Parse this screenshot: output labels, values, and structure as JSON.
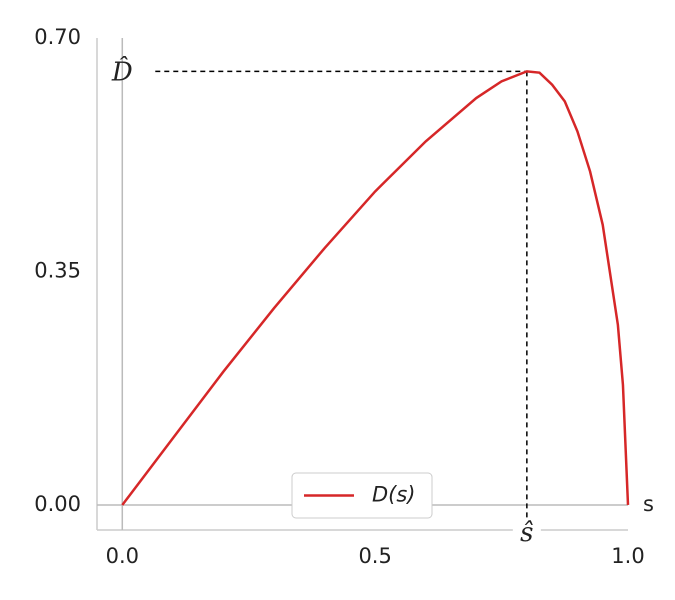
{
  "chart_data": {
    "type": "line",
    "x": [
      0,
      0.1,
      0.2,
      0.3,
      0.4,
      0.5,
      0.6,
      0.7,
      0.75,
      0.8,
      0.825,
      0.85,
      0.875,
      0.9,
      0.925,
      0.95,
      0.98,
      0.99,
      1.0
    ],
    "series": [
      {
        "name": "D(s)",
        "color": "#d62728",
        "values": [
          0,
          0.1,
          0.2,
          0.295,
          0.385,
          0.47,
          0.545,
          0.61,
          0.635,
          0.65,
          0.648,
          0.63,
          0.605,
          0.56,
          0.5,
          0.42,
          0.27,
          0.18,
          0
        ]
      }
    ],
    "xlabel": "s",
    "xlim": [
      -0.05,
      1.0
    ],
    "ylim": [
      -0.0375,
      0.7
    ],
    "xticks": [
      {
        "value": 0,
        "label": "0.0"
      },
      {
        "value": 0.5,
        "label": "0.5"
      },
      {
        "value": 1.0,
        "label": "1.0"
      }
    ],
    "yticks": [
      {
        "value": 0,
        "label": "0.00"
      },
      {
        "value": 0.35,
        "label": "0.35"
      },
      {
        "value": 0.7,
        "label": "0.70"
      }
    ],
    "peak_x": 0.8,
    "peak_y": 0.65,
    "peak_x_label": "ŝ",
    "peak_y_label": "D̂",
    "legend": "lower center"
  }
}
